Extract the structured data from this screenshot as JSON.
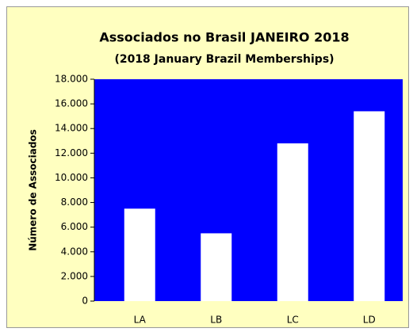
{
  "chart_data": {
    "type": "bar",
    "title": "Associados no Brasil  JANEIRO 2018",
    "subtitle": "(2018 January Brazil Memberships)",
    "y_label": "Número de Associados",
    "categories": [
      "LA",
      "LB",
      "LC",
      "LD"
    ],
    "values": [
      7500,
      5500,
      12800,
      15400
    ],
    "color": "#ffffff",
    "plot_background": "#0000ff",
    "background": "#ffffc0",
    "ylim": [
      0,
      18000
    ],
    "yticks": [
      0,
      {
        "value": 2000,
        "label": "2.000"
      },
      {
        "value": 4000,
        "label": "4.000"
      },
      {
        "value": 6000,
        "label": "6.000"
      },
      {
        "value": 8000,
        "label": "8.000"
      },
      {
        "value": 10000,
        "label": "10.000"
      },
      {
        "value": 12000,
        "label": "12.000"
      },
      {
        "value": 14000,
        "label": "14.000"
      },
      {
        "value": 16000,
        "label": "16.000"
      },
      {
        "value": 18000,
        "label": "18.000"
      }
    ],
    "grid": false
  }
}
